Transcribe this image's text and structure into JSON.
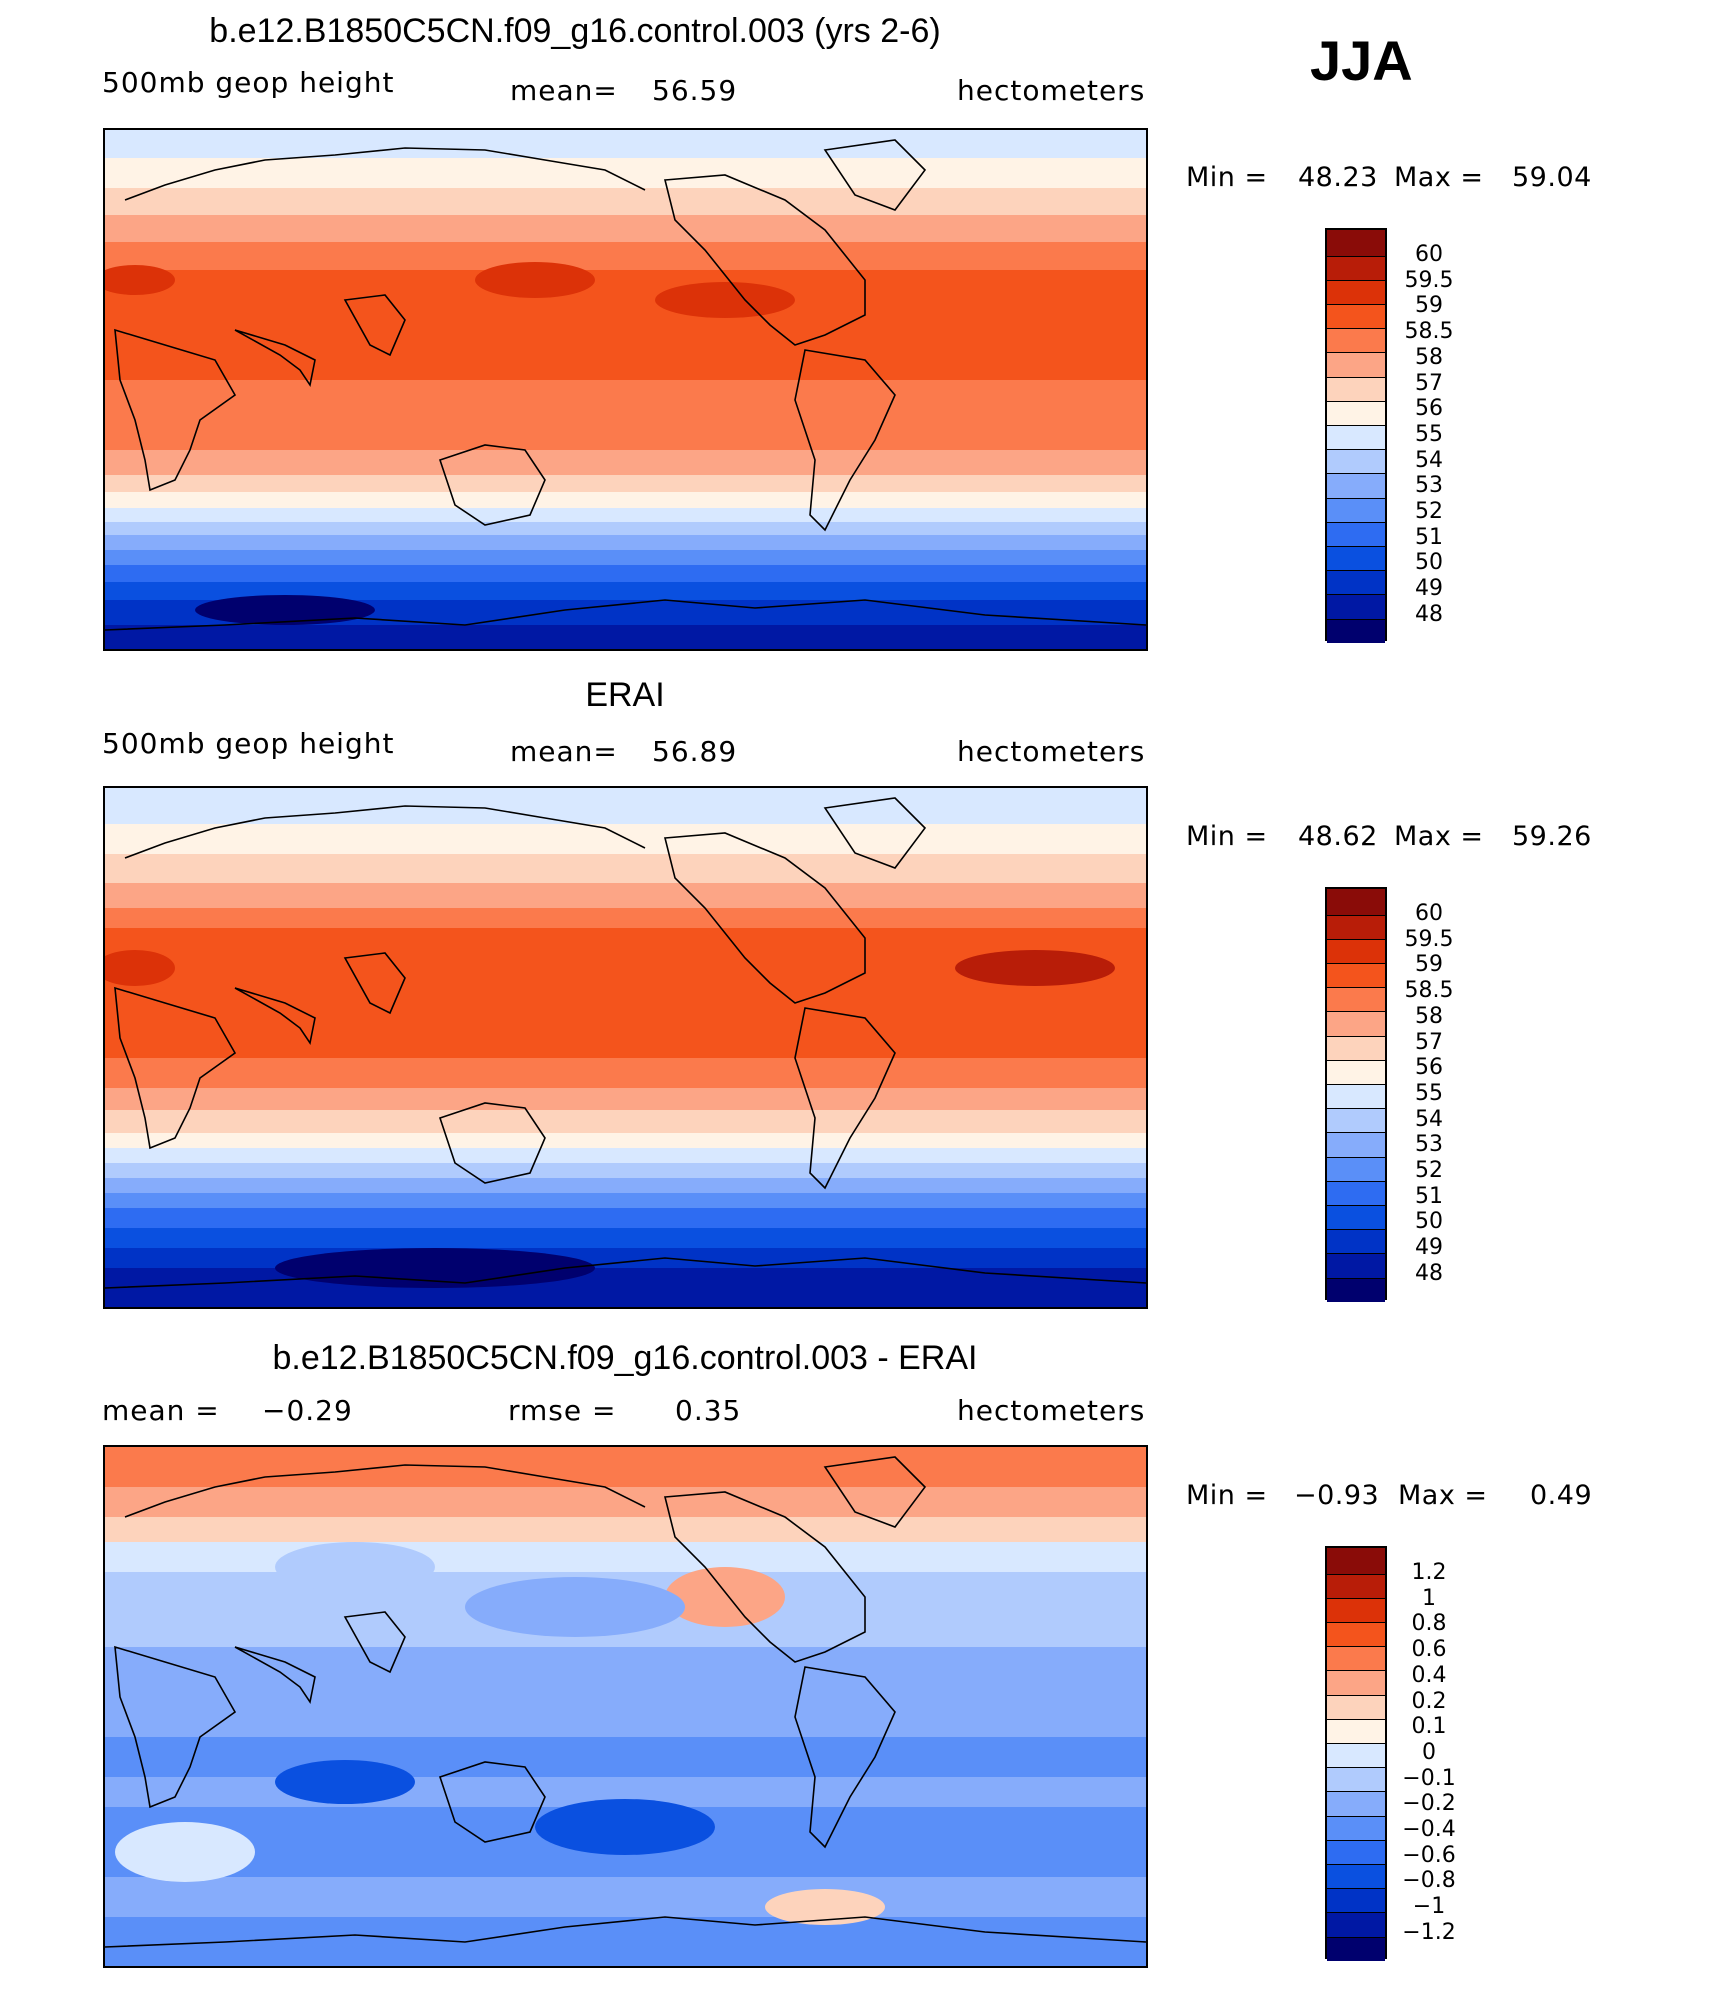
{
  "season": "JJA",
  "palettes": {
    "height": [
      "#00006e",
      "#0018a4",
      "#0033c6",
      "#0a50e0",
      "#2e6cf2",
      "#5a8ff8",
      "#86acfb",
      "#b0cbfd",
      "#d8e8ff",
      "#fff3e6",
      "#fdd3bc",
      "#fca586",
      "#fb7a4c",
      "#f4541c",
      "#dc3208",
      "#b81d08",
      "#8a0c08"
    ],
    "diff": [
      "#00006e",
      "#0018a4",
      "#0033c6",
      "#0a50e0",
      "#2e6cf2",
      "#5a8ff8",
      "#86acfb",
      "#b0cbfd",
      "#d8e8ff",
      "#fff3e6",
      "#fdd3bc",
      "#fca586",
      "#fb7a4c",
      "#f4541c",
      "#dc3208",
      "#b81d08",
      "#8a0c08"
    ]
  },
  "panels": [
    {
      "title": "b.e12.B1850C5CN.f09_g16.control.003 (yrs 2-6)",
      "variable": "500mb geop height",
      "stat_label": "mean=",
      "stat_value": "56.59",
      "extra_label": "",
      "extra_value": "",
      "units": "hectometers",
      "min_label": "Min =",
      "min_value": "48.23",
      "max_label": "Max =",
      "max_value": "59.04",
      "colorbar_labels": [
        "60",
        "59.5",
        "59",
        "58.5",
        "58",
        "57",
        "56",
        "55",
        "54",
        "53",
        "52",
        "51",
        "50",
        "49",
        "48"
      ],
      "palette": "height"
    },
    {
      "title": "ERAI",
      "variable": "500mb geop height",
      "stat_label": "mean=",
      "stat_value": "56.89",
      "extra_label": "",
      "extra_value": "",
      "units": "hectometers",
      "min_label": "Min =",
      "min_value": "48.62",
      "max_label": "Max =",
      "max_value": "59.26",
      "colorbar_labels": [
        "60",
        "59.5",
        "59",
        "58.5",
        "58",
        "57",
        "56",
        "55",
        "54",
        "53",
        "52",
        "51",
        "50",
        "49",
        "48"
      ],
      "palette": "height"
    },
    {
      "title": "b.e12.B1850C5CN.f09_g16.control.003 - ERAI",
      "variable": "",
      "stat_label": "mean =",
      "stat_value": "−0.29",
      "extra_label": "rmse =",
      "extra_value": "0.35",
      "units": "hectometers",
      "min_label": "Min =",
      "min_value": "−0.93",
      "max_label": "Max =",
      "max_value": "0.49",
      "colorbar_labels": [
        "1.2",
        "1",
        "0.8",
        "0.6",
        "0.4",
        "0.2",
        "0.1",
        "0",
        "−0.1",
        "−0.2",
        "−0.4",
        "−0.6",
        "−0.8",
        "−1",
        "−1.2"
      ],
      "palette": "diff"
    }
  ]
}
